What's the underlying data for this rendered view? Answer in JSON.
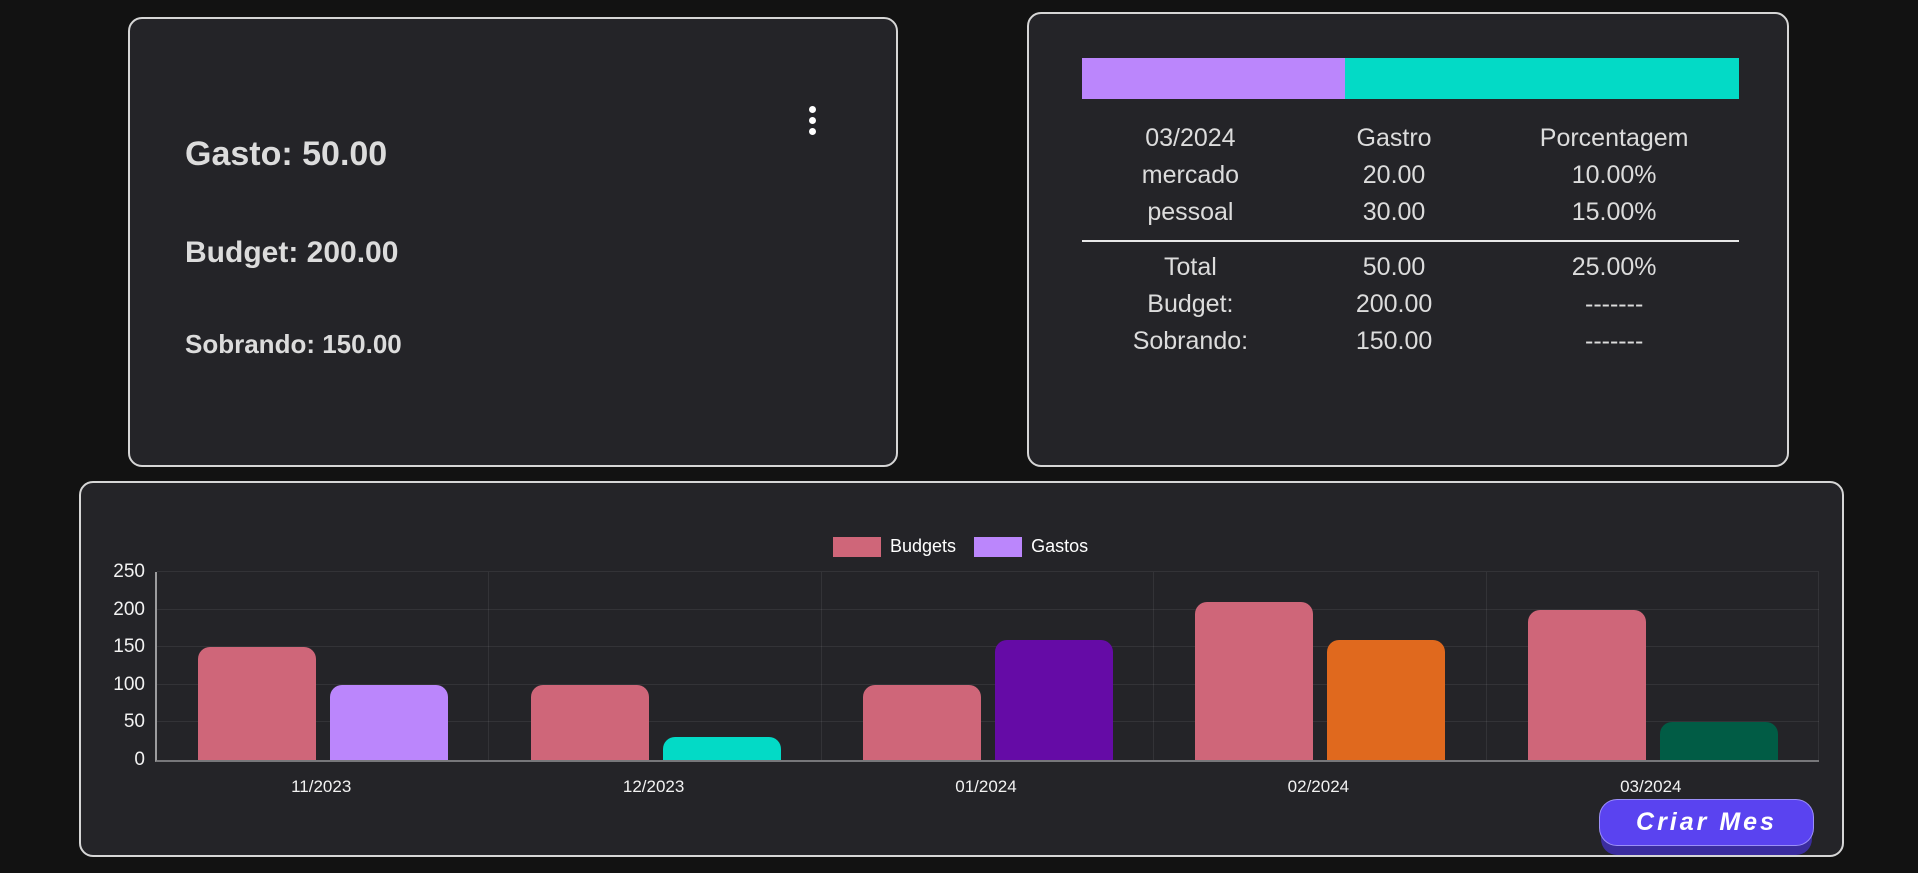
{
  "colors": {
    "page_bg": "#121212",
    "card_bg": "#242428",
    "card_border": "#d6d6d6",
    "text": "#dcdcdc",
    "accent_purple": "#bb86fc",
    "accent_teal": "#03dac6",
    "budgets_pink": "#cf6679",
    "button_bg": "#5a43f0",
    "button_shadow": "#3b2d9f"
  },
  "summary_card": {
    "menu_icon": "kebab-vertical-icon",
    "lines": [
      {
        "id": "gasto",
        "label": "Gasto:",
        "value": "50.00"
      },
      {
        "id": "budget",
        "label": "Budget:",
        "value": "200.00"
      },
      {
        "id": "sobrando",
        "label": "Sobrando:",
        "value": "150.00"
      }
    ]
  },
  "detail_card": {
    "progress_bar": {
      "segments": [
        {
          "name": "mercado",
          "color": "#bb86fc",
          "percent": 40
        },
        {
          "name": "pessoal",
          "color": "#03dac6",
          "percent": 60
        }
      ]
    },
    "table": {
      "headers": [
        "03/2024",
        "Gastro",
        "Porcentagem"
      ],
      "rows": [
        [
          "mercado",
          "20.00",
          "10.00%"
        ],
        [
          "pessoal",
          "30.00",
          "15.00%"
        ]
      ],
      "summary_rows": [
        [
          "Total",
          "50.00",
          "25.00%"
        ],
        [
          "Budget:",
          "200.00",
          "-------"
        ],
        [
          "Sobrando:",
          "150.00",
          "-------"
        ]
      ]
    }
  },
  "chart_card": {
    "button_label": "Criar Mes"
  },
  "chart_data": {
    "type": "bar",
    "title": "",
    "xlabel": "",
    "ylabel": "",
    "categories": [
      "11/2023",
      "12/2023",
      "01/2024",
      "02/2024",
      "03/2024"
    ],
    "series": [
      {
        "name": "Budgets",
        "color": "#cf6679",
        "values": [
          150,
          100,
          100,
          210,
          200
        ]
      },
      {
        "name": "Gastos",
        "legend_color": "#bb86fc",
        "colors": [
          "#bb86fc",
          "#03dac6",
          "#650ba6",
          "#e0691e",
          "#015c45"
        ],
        "values": [
          100,
          30,
          160,
          160,
          50
        ]
      }
    ],
    "ylim": [
      0,
      250
    ],
    "yticks": [
      0,
      50,
      100,
      150,
      200,
      250
    ],
    "grid": true,
    "legend_position": "top"
  }
}
